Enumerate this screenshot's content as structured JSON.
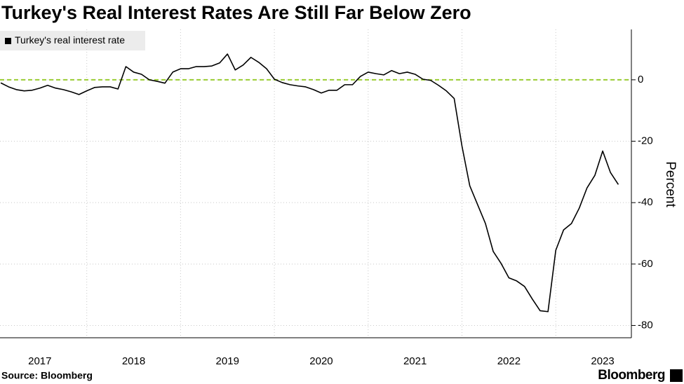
{
  "chart_data": {
    "type": "line",
    "title": "Turkey's Real Interest Rates Are Still Far Below Zero",
    "y_label": "Percent",
    "source": "Source: Bloomberg",
    "brand": "Bloomberg",
    "legend": "top-left",
    "reference_line": {
      "value": 0,
      "color": "#9acd32"
    },
    "x": [
      2017.083,
      2017.167,
      2017.25,
      2017.333,
      2017.417,
      2017.5,
      2017.583,
      2017.667,
      2017.75,
      2017.833,
      2017.917,
      2018,
      2018.083,
      2018.167,
      2018.25,
      2018.333,
      2018.417,
      2018.5,
      2018.583,
      2018.667,
      2018.75,
      2018.833,
      2018.917,
      2019,
      2019.083,
      2019.167,
      2019.25,
      2019.333,
      2019.417,
      2019.5,
      2019.583,
      2019.667,
      2019.75,
      2019.833,
      2019.917,
      2020,
      2020.083,
      2020.167,
      2020.25,
      2020.333,
      2020.417,
      2020.5,
      2020.583,
      2020.667,
      2020.75,
      2020.833,
      2020.917,
      2021,
      2021.083,
      2021.167,
      2021.25,
      2021.333,
      2021.417,
      2021.5,
      2021.583,
      2021.667,
      2021.75,
      2021.833,
      2021.917,
      2022,
      2022.083,
      2022.167,
      2022.25,
      2022.333,
      2022.417,
      2022.5,
      2022.583,
      2022.667,
      2022.75,
      2022.833,
      2022.917,
      2023,
      2023.083,
      2023.167,
      2023.25,
      2023.333,
      2023.417,
      2023.5,
      2023.583,
      2023.667
    ],
    "series": [
      {
        "name": "Turkey's real interest rate",
        "color": "#000000",
        "values": [
          -1,
          -2.3,
          -3.2,
          -3.6,
          -3.4,
          -2.7,
          -1.8,
          -2.7,
          -3.2,
          -3.9,
          -4.8,
          -3.6,
          -2.5,
          -2.3,
          -2.3,
          -3,
          4.3,
          2.5,
          1.8,
          0,
          -0.5,
          -1.1,
          2.5,
          3.6,
          3.6,
          4.3,
          4.3,
          4.5,
          5.5,
          8.4,
          3.2,
          4.8,
          7.3,
          5.7,
          3.6,
          0.2,
          -0.9,
          -1.6,
          -2,
          -2.3,
          -3.2,
          -4.3,
          -3.4,
          -3.4,
          -1.6,
          -1.6,
          1.1,
          2.5,
          2,
          1.6,
          3,
          2,
          2.5,
          1.8,
          0.2,
          -0.2,
          -1.8,
          -3.6,
          -6.1,
          -21.6,
          -34.5,
          -40.7,
          -46.8,
          -55.9,
          -59.8,
          -64.5,
          -65.5,
          -67.3,
          -71.4,
          -75.2,
          -75.5,
          -55.5,
          -48.9,
          -46.8,
          -41.8,
          -35.2,
          -31.1,
          -23.2,
          -30.2,
          -34.1
        ]
      }
    ],
    "xlim": [
      2017.075,
      2023.806
    ],
    "ylim": [
      -84,
      16.4
    ],
    "xticks": [
      {
        "value": 2017.5,
        "label": "2017"
      },
      {
        "value": 2018.5,
        "label": "2018"
      },
      {
        "value": 2019.5,
        "label": "2019"
      },
      {
        "value": 2020.5,
        "label": "2020"
      },
      {
        "value": 2021.5,
        "label": "2021"
      },
      {
        "value": 2022.5,
        "label": "2022"
      },
      {
        "value": 2023.5,
        "label": "2023"
      }
    ],
    "xgrid": [
      2018,
      2019,
      2020,
      2021,
      2022,
      2023
    ],
    "yticks": [
      0,
      -20,
      -40,
      -60,
      -80
    ],
    "grid": true
  }
}
